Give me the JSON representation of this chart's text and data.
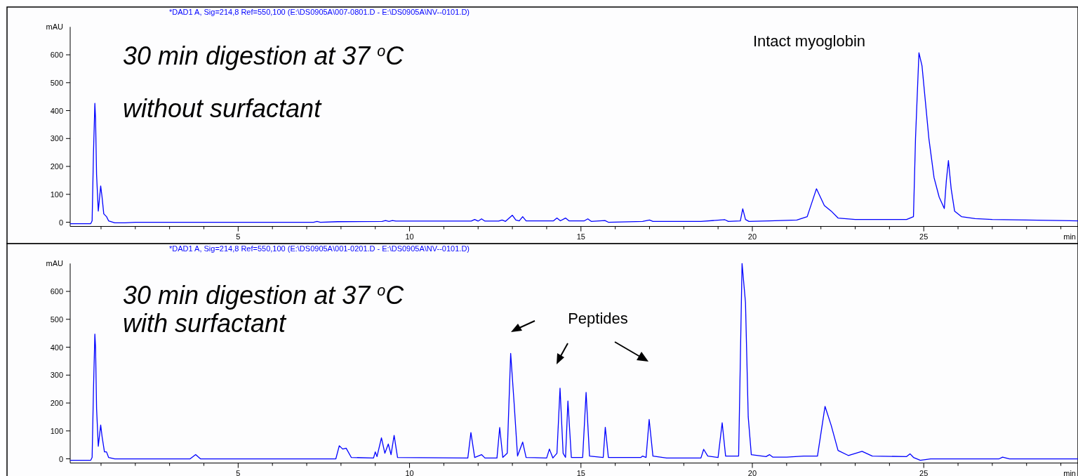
{
  "chart_data": [
    {
      "type": "line",
      "title": "*DAD1 A, Sig=214,8 Ref=550,100 (E:\\DS0905A\\007-0801.D - E:\\DS0905A\\NV--0101.D)",
      "xlabel": "min",
      "ylabel": "mAU",
      "annotations": [
        "30 min digestion at 37 $^{o}$C",
        "without surfactant",
        "Intact myoglobin"
      ],
      "xlim": [
        0.1,
        29.5
      ],
      "ylim": [
        -15,
        700
      ],
      "yticks": [
        0,
        100,
        200,
        300,
        400,
        500,
        600
      ],
      "xticks": [
        {
          "value": 1,
          "label": null
        },
        {
          "value": 2,
          "label": null
        },
        {
          "value": 3,
          "label": null
        },
        {
          "value": 4,
          "label": null
        },
        5,
        {
          "value": 6,
          "label": null
        },
        {
          "value": 7,
          "label": null
        },
        {
          "value": 8,
          "label": null
        },
        {
          "value": 9,
          "label": null
        },
        10,
        {
          "value": 11,
          "label": null
        },
        {
          "value": 12,
          "label": null
        },
        {
          "value": 13,
          "label": null
        },
        {
          "value": 14,
          "label": null
        },
        15,
        {
          "value": 16,
          "label": null
        },
        {
          "value": 17,
          "label": null
        },
        {
          "value": 18,
          "label": null
        },
        {
          "value": 19,
          "label": null
        },
        20,
        {
          "value": 21,
          "label": null
        },
        {
          "value": 22,
          "label": null
        },
        {
          "value": 23,
          "label": null
        },
        {
          "value": 24,
          "label": null
        },
        25,
        {
          "value": 26,
          "label": null
        },
        {
          "value": 27,
          "label": null
        },
        {
          "value": 28,
          "label": null
        },
        {
          "value": 29,
          "label": null
        }
      ],
      "series": [
        {
          "color": "#0000ff",
          "x": [
            0.1,
            0.7,
            0.74,
            0.78,
            0.82,
            0.84,
            0.87,
            0.92,
            0.99,
            1.03,
            1.08,
            1.16,
            1.22,
            1.4,
            1.7,
            2,
            7.2,
            7.3,
            7.4,
            7.9,
            9.2,
            9.3,
            9.4,
            9.5,
            9.6,
            11.8,
            11.9,
            12.0,
            12.1,
            12.2,
            12.6,
            12.7,
            12.8,
            13.0,
            13.1,
            13.2,
            13.3,
            13.4,
            14.2,
            14.3,
            14.4,
            14.55,
            14.65,
            15.1,
            15.2,
            15.3,
            15.7,
            15.8,
            16.8,
            17.0,
            17.1,
            18.5,
            19.2,
            19.3,
            19.65,
            19.72,
            19.8,
            19.9,
            20.5,
            21.3,
            21.6,
            21.87,
            22.1,
            22.3,
            22.5,
            23,
            24.5,
            24.7,
            24.76,
            24.86,
            24.95,
            25.05,
            25.15,
            25.3,
            25.45,
            25.6,
            25.66,
            25.72,
            25.8,
            25.9,
            26.1,
            26.5,
            27,
            28,
            29.5
          ],
          "values": [
            -5,
            -5,
            5,
            250,
            426,
            372,
            170,
            40,
            130,
            90,
            30,
            20,
            5,
            -2,
            -2,
            0,
            0,
            3,
            0,
            2,
            3,
            6,
            3,
            6,
            4,
            4,
            10,
            4,
            12,
            4,
            4,
            8,
            3,
            25,
            8,
            5,
            20,
            5,
            5,
            15,
            5,
            15,
            5,
            5,
            12,
            3,
            6,
            0,
            3,
            8,
            3,
            3,
            9,
            3,
            5,
            48,
            10,
            3,
            5,
            8,
            20,
            120,
            60,
            40,
            15,
            10,
            10,
            20,
            300,
            607,
            560,
            430,
            300,
            160,
            90,
            49,
            150,
            221,
            120,
            40,
            20,
            13,
            10,
            8,
            5
          ]
        }
      ]
    },
    {
      "type": "line",
      "title": "*DAD1 A, Sig=214,8 Ref=550,100 (E:\\DS0905A\\001-0201.D - E:\\DS0905A\\NV--0101.D)",
      "xlabel": "min",
      "ylabel": "mAU",
      "annotations": [
        "30 min digestion at 37 $^{o}$C",
        "with surfactant",
        "Peptides"
      ],
      "xlim": [
        0.1,
        29.5
      ],
      "ylim": [
        -15,
        700
      ],
      "yticks": [
        0,
        100,
        200,
        300,
        400,
        500,
        600
      ],
      "xticks": [
        {
          "value": 1,
          "label": null
        },
        {
          "value": 2,
          "label": null
        },
        {
          "value": 3,
          "label": null
        },
        {
          "value": 4,
          "label": null
        },
        5,
        {
          "value": 6,
          "label": null
        },
        {
          "value": 7,
          "label": null
        },
        {
          "value": 8,
          "label": null
        },
        {
          "value": 9,
          "label": null
        },
        10,
        {
          "value": 11,
          "label": null
        },
        {
          "value": 12,
          "label": null
        },
        {
          "value": 13,
          "label": null
        },
        {
          "value": 14,
          "label": null
        },
        15,
        {
          "value": 16,
          "label": null
        },
        {
          "value": 17,
          "label": null
        },
        {
          "value": 18,
          "label": null
        },
        {
          "value": 19,
          "label": null
        },
        20,
        {
          "value": 21,
          "label": null
        },
        {
          "value": 22,
          "label": null
        },
        {
          "value": 23,
          "label": null
        },
        {
          "value": 24,
          "label": null
        },
        25,
        {
          "value": 26,
          "label": null
        },
        {
          "value": 27,
          "label": null
        },
        {
          "value": 28,
          "label": null
        },
        {
          "value": 29,
          "label": null
        }
      ],
      "series": [
        {
          "color": "#0000ff",
          "x": [
            0.1,
            0.7,
            0.74,
            0.78,
            0.82,
            0.84,
            0.87,
            0.92,
            0.99,
            1.03,
            1.1,
            1.16,
            1.22,
            1.4,
            3.6,
            3.76,
            3.9,
            7.85,
            7.95,
            8.05,
            8.15,
            8.3,
            8.95,
            9.0,
            9.05,
            9.18,
            9.28,
            9.38,
            9.46,
            9.55,
            9.65,
            11.7,
            11.79,
            11.9,
            12.1,
            12.2,
            12.55,
            12.63,
            12.72,
            12.85,
            12.95,
            13.05,
            13.15,
            13.3,
            13.4,
            14.0,
            14.08,
            14.18,
            14.3,
            14.39,
            14.48,
            14.55,
            14.62,
            14.72,
            15.05,
            15.15,
            15.25,
            15.65,
            15.71,
            15.8,
            16.75,
            16.8,
            16.9,
            16.99,
            17.1,
            17.5,
            18.5,
            18.58,
            18.7,
            19.0,
            19.12,
            19.22,
            19.6,
            19.7,
            19.8,
            19.88,
            19.97,
            20.4,
            20.5,
            20.6,
            21.0,
            21.5,
            21.9,
            22.12,
            22.3,
            22.5,
            22.8,
            23.2,
            23.5,
            24.5,
            24.6,
            24.7,
            24.9,
            25.2,
            27.2,
            27.3,
            27.5,
            29.5
          ],
          "values": [
            -5,
            -5,
            5,
            250,
            447,
            400,
            180,
            45,
            121,
            80,
            25,
            25,
            5,
            0,
            0,
            15,
            0,
            0,
            47,
            35,
            38,
            5,
            3,
            25,
            8,
            75,
            20,
            53,
            15,
            84,
            5,
            3,
            94,
            5,
            15,
            3,
            3,
            112,
            5,
            20,
            378,
            200,
            10,
            60,
            5,
            3,
            35,
            3,
            20,
            253,
            20,
            5,
            207,
            5,
            5,
            238,
            10,
            5,
            113,
            5,
            5,
            10,
            5,
            141,
            10,
            3,
            3,
            34,
            10,
            5,
            129,
            10,
            10,
            700,
            560,
            150,
            15,
            8,
            15,
            6,
            6,
            10,
            10,
            188,
            120,
            30,
            12,
            27,
            10,
            8,
            18,
            5,
            -5,
            0,
            0,
            6,
            0,
            0
          ]
        }
      ]
    }
  ]
}
